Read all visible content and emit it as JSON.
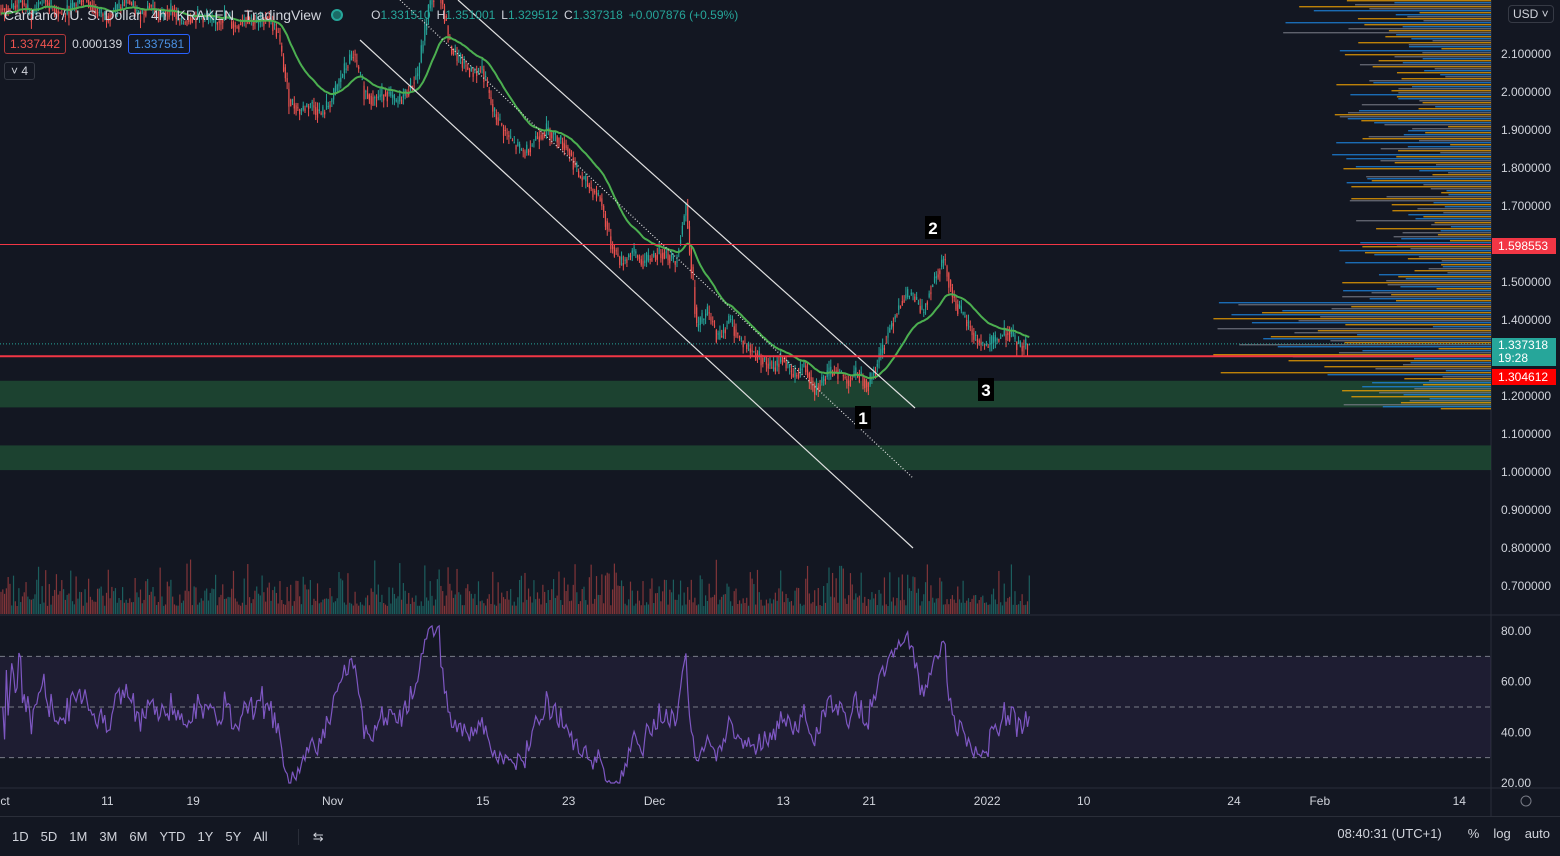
{
  "header": {
    "symbol": "Cardano / U. S. Dollar",
    "interval": "4h",
    "exchange": "KRAKEN",
    "source": "TradingView",
    "ohlc": {
      "o_label": "O",
      "o": "1.331510",
      "h_label": "H",
      "h": "1.351001",
      "l_label": "L",
      "l": "1.329512",
      "c_label": "C",
      "c": "1.337318",
      "change": "+0.007876 (+0.59%)"
    }
  },
  "trade": {
    "sell": "1.337442",
    "spread": "0.000139",
    "buy": "1.337581"
  },
  "collapse": {
    "label": "4"
  },
  "currency": "USD",
  "price_tags": {
    "resistance": "1.598553",
    "last": "1.337318",
    "countdown": "19:28",
    "support": "1.304612"
  },
  "annotations": [
    "1",
    "2",
    "3"
  ],
  "bottom": {
    "ranges": [
      "1D",
      "5D",
      "1M",
      "3M",
      "6M",
      "YTD",
      "1Y",
      "5Y",
      "All"
    ],
    "time": "08:40:31 (UTC+1)",
    "pct": "%",
    "log": "log",
    "auto": "auto"
  },
  "colors": {
    "up": "#26a69a",
    "down": "#ef5350",
    "ema": "#4caf50",
    "rsi": "#7e57c2",
    "zone": "#1e4a32",
    "hline": "#f23645"
  },
  "chart_data": {
    "type": "candlestick",
    "title": "Cardano / U. S. Dollar 4h KRAKEN",
    "x_ticks": [
      "ct",
      "11",
      "19",
      "Nov",
      "15",
      "23",
      "Dec",
      "13",
      "21",
      "2022",
      "10",
      "24",
      "Feb",
      "14"
    ],
    "x_tick_days": [
      0,
      10,
      18,
      31,
      45,
      53,
      61,
      73,
      81,
      92,
      101,
      115,
      123,
      136
    ],
    "y_ticks": [
      "2.100000",
      "2.000000",
      "1.900000",
      "1.800000",
      "1.700000",
      "1.500000",
      "1.400000",
      "1.200000",
      "1.100000",
      "1.000000",
      "0.900000",
      "0.800000",
      "0.700000"
    ],
    "y_tick_values": [
      2.1,
      2.0,
      1.9,
      1.8,
      1.7,
      1.5,
      1.4,
      1.2,
      1.1,
      1.0,
      0.9,
      0.8,
      0.7
    ],
    "ylim": [
      0.66,
      2.24
    ],
    "closes_daily_from_oct1": [
      2.22,
      2.24,
      2.2,
      2.25,
      2.22,
      2.2,
      2.23,
      2.25,
      2.21,
      2.2,
      2.22,
      2.24,
      2.2,
      2.23,
      2.2,
      2.22,
      2.18,
      2.2,
      2.2,
      2.18,
      2.2,
      2.17,
      2.2,
      2.18,
      2.2,
      2.15,
      1.98,
      1.95,
      1.97,
      1.94,
      1.98,
      2.05,
      2.1,
      2.0,
      1.98,
      2.0,
      1.97,
      2.0,
      2.05,
      2.22,
      2.28,
      2.12,
      2.08,
      2.05,
      2.06,
      1.95,
      1.9,
      1.86,
      1.84,
      1.88,
      1.9,
      1.88,
      1.85,
      1.78,
      1.75,
      1.72,
      1.6,
      1.55,
      1.58,
      1.55,
      1.57,
      1.58,
      1.55,
      1.7,
      1.38,
      1.42,
      1.35,
      1.4,
      1.35,
      1.32,
      1.3,
      1.27,
      1.3,
      1.25,
      1.28,
      1.22,
      1.25,
      1.27,
      1.24,
      1.26,
      1.23,
      1.3,
      1.38,
      1.45,
      1.47,
      1.42,
      1.5,
      1.56,
      1.45,
      1.4,
      1.35,
      1.33,
      1.35,
      1.37,
      1.33,
      1.337
    ],
    "horizontal_lines": [
      1.598553,
      1.304612
    ],
    "zones": [
      [
        1.17,
        1.24
      ],
      [
        1.005,
        1.07
      ]
    ],
    "rsi": {
      "y_ticks": [
        "80.00",
        "60.00",
        "40.00",
        "20.00"
      ],
      "y_tick_values": [
        80,
        60,
        40,
        20
      ],
      "band": [
        30,
        70
      ],
      "mid": 50
    }
  }
}
